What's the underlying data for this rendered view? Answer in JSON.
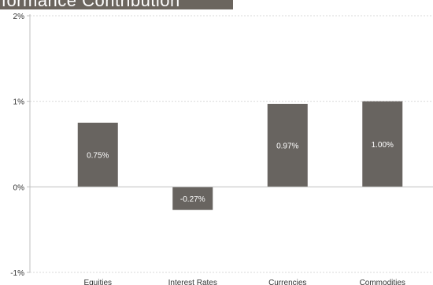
{
  "header": {
    "title": "rformance Contribution"
  },
  "colors": {
    "bar": "#686460",
    "grid": "#d9d9d9",
    "axis": "#bfbfbf",
    "title_band": "#6b655e"
  },
  "chart_data": {
    "type": "bar",
    "title": "",
    "xlabel": "",
    "ylabel": "",
    "categories": [
      "Equities",
      "Interest Rates",
      "Currencies",
      "Commodities"
    ],
    "values": [
      0.75,
      -0.27,
      0.97,
      1.0
    ],
    "data_labels": [
      "0.75%",
      "-0.27%",
      "0.97%",
      "1.00%"
    ],
    "ylim": [
      -1,
      2
    ],
    "yticks": [
      2,
      1,
      0,
      -1
    ],
    "ytick_labels": [
      "2%",
      "1%",
      "0%",
      "-1%"
    ],
    "grid": true,
    "legend": "none"
  }
}
